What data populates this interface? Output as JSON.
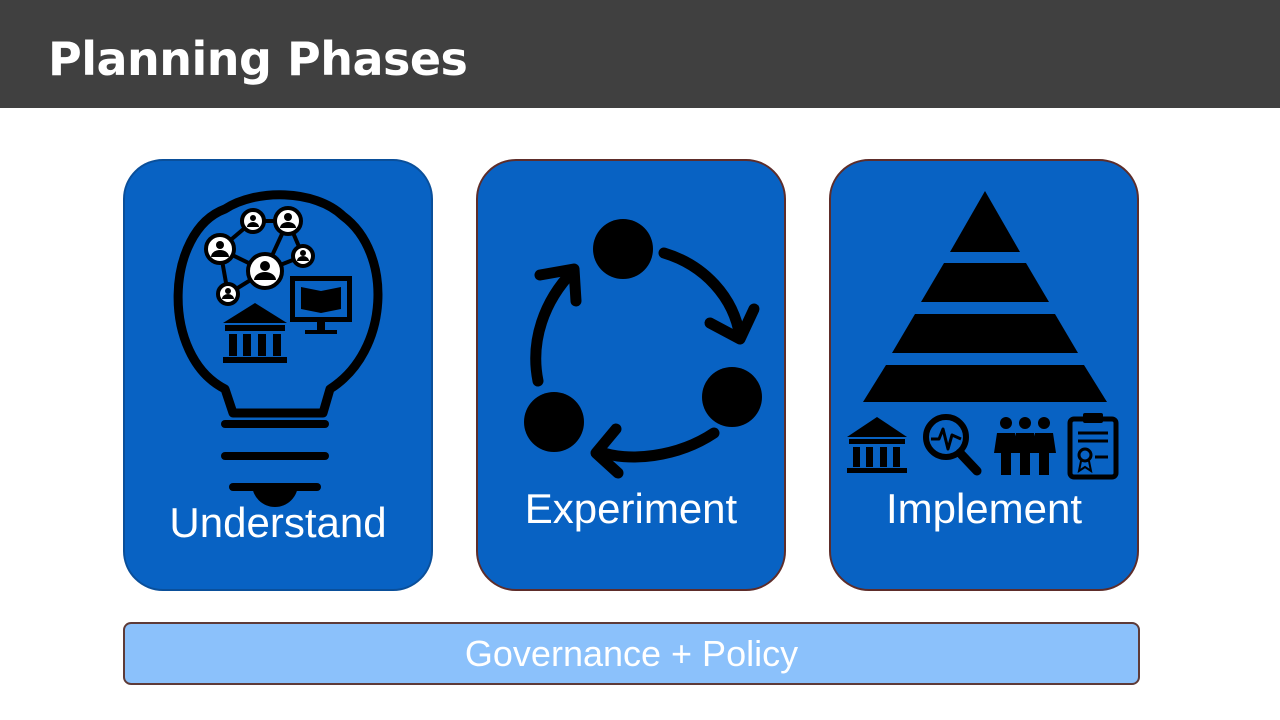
{
  "header": {
    "title": "Planning Phases",
    "background_color": "#404040"
  },
  "phases": [
    {
      "label": "Understand",
      "icon": "lightbulb-network-icon",
      "sub_icons": [
        "people-network-icon",
        "government-building-icon",
        "monitor-book-icon"
      ],
      "color": "#0862c3"
    },
    {
      "label": "Experiment",
      "icon": "cycle-arrows-icon",
      "color": "#0862c3"
    },
    {
      "label": "Implement",
      "icon": "pyramid-icon",
      "sub_icons": [
        "government-building-icon",
        "magnifier-pulse-icon",
        "people-group-icon",
        "certificate-clipboard-icon"
      ],
      "color": "#0862c3"
    }
  ],
  "foundation": {
    "label": "Governance + Policy",
    "color": "#8bc1fb"
  }
}
